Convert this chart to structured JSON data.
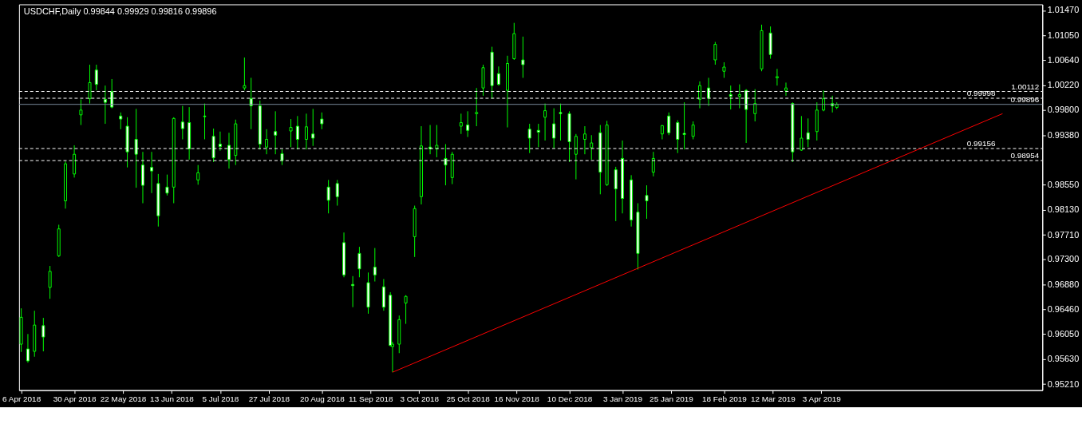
{
  "chart_data": {
    "type": "candlestick",
    "title": "USDCHF,Daily 0.99844 0.99929 0.99816 0.99896",
    "color": "#00ff00",
    "x": [
      "2018-04-06",
      "2018-04-09",
      "2018-04-12",
      "2018-04-16",
      "2018-04-19",
      "2018-04-23",
      "2018-04-26",
      "2018-04-30",
      "2018-05-03",
      "2018-05-07",
      "2018-05-10",
      "2018-05-14",
      "2018-05-17",
      "2018-05-21",
      "2018-05-24",
      "2018-05-28",
      "2018-05-31",
      "2018-06-04",
      "2018-06-07",
      "2018-06-11",
      "2018-06-14",
      "2018-06-18",
      "2018-06-21",
      "2018-06-25",
      "2018-06-28",
      "2018-07-02",
      "2018-07-05",
      "2018-07-09",
      "2018-07-12",
      "2018-07-16",
      "2018-07-19",
      "2018-07-23",
      "2018-07-26",
      "2018-07-30",
      "2018-08-02",
      "2018-08-06",
      "2018-08-09",
      "2018-08-13",
      "2018-08-16",
      "2018-08-20",
      "2018-08-23",
      "2018-08-27",
      "2018-08-30",
      "2018-09-03",
      "2018-09-06",
      "2018-09-10",
      "2018-09-13",
      "2018-09-17",
      "2018-09-20",
      "2018-09-21",
      "2018-09-24",
      "2018-09-27",
      "2018-10-01",
      "2018-10-04",
      "2018-10-08",
      "2018-10-11",
      "2018-10-15",
      "2018-10-18",
      "2018-10-22",
      "2018-10-25",
      "2018-10-29",
      "2018-11-01",
      "2018-11-05",
      "2018-11-08",
      "2018-11-12",
      "2018-11-15",
      "2018-11-19",
      "2018-11-22",
      "2018-11-26",
      "2018-11-29",
      "2018-12-03",
      "2018-12-06",
      "2018-12-10",
      "2018-12-13",
      "2018-12-17",
      "2018-12-20",
      "2018-12-24",
      "2018-12-27",
      "2018-12-31",
      "2019-01-03",
      "2019-01-07",
      "2019-01-10",
      "2019-01-14",
      "2019-01-17",
      "2019-01-21",
      "2019-01-24",
      "2019-01-28",
      "2019-01-31",
      "2019-02-04",
      "2019-02-07",
      "2019-02-11",
      "2019-02-14",
      "2019-02-18",
      "2019-02-21",
      "2019-02-25",
      "2019-02-28",
      "2019-03-04",
      "2019-03-07",
      "2019-03-11",
      "2019-03-14",
      "2019-03-18",
      "2019-03-21",
      "2019-03-25",
      "2019-03-28",
      "2019-04-01",
      "2019-04-04",
      "2019-04-08",
      "2019-04-10"
    ],
    "ohlc": [
      [
        0.9588,
        0.9648,
        0.9575,
        0.9633
      ],
      [
        0.958,
        0.9605,
        0.9557,
        0.956
      ],
      [
        0.9576,
        0.9644,
        0.9567,
        0.962
      ],
      [
        0.9619,
        0.9632,
        0.9576,
        0.96
      ],
      [
        0.9683,
        0.9719,
        0.9664,
        0.971
      ],
      [
        0.9736,
        0.9788,
        0.9734,
        0.9781
      ],
      [
        0.9828,
        0.9894,
        0.9815,
        0.989
      ],
      [
        0.9873,
        0.9921,
        0.9867,
        0.9906
      ],
      [
        0.9972,
        0.9998,
        0.9955,
        0.998
      ],
      [
        0.9999,
        1.0056,
        0.9991,
        1.0026
      ],
      [
        1.0047,
        1.0056,
        1.0013,
        1.0023
      ],
      [
        0.9998,
        1.0021,
        0.9957,
        0.9993
      ],
      [
        1.0011,
        1.0032,
        0.9983,
        0.9985
      ],
      [
        0.997,
        0.9976,
        0.9948,
        0.9965
      ],
      [
        0.9953,
        0.9968,
        0.9884,
        0.991
      ],
      [
        0.9931,
        0.9982,
        0.985,
        0.9906
      ],
      [
        0.9888,
        0.991,
        0.9824,
        0.9854
      ],
      [
        0.9884,
        0.991,
        0.9841,
        0.9878
      ],
      [
        0.9857,
        0.9873,
        0.9785,
        0.9803
      ],
      [
        0.9851,
        0.9872,
        0.9837,
        0.9841
      ],
      [
        0.9851,
        0.9968,
        0.9824,
        0.9966
      ],
      [
        0.996,
        0.9987,
        0.9931,
        0.9949
      ],
      [
        0.9959,
        0.9985,
        0.9897,
        0.9915
      ],
      [
        0.9863,
        0.9888,
        0.9855,
        0.9875
      ],
      [
        0.997,
        0.9991,
        0.9931,
        0.9969
      ],
      [
        0.9936,
        0.9949,
        0.9893,
        0.99
      ],
      [
        0.9923,
        0.9944,
        0.9912,
        0.9919
      ],
      [
        0.9921,
        0.9942,
        0.9882,
        0.9897
      ],
      [
        0.9904,
        0.9964,
        0.9888,
        0.9957
      ],
      [
        1.0017,
        1.0068,
        1.0013,
        1.0021
      ],
      [
        0.9999,
        1.0034,
        0.9948,
        0.9987
      ],
      [
        0.9987,
        0.9996,
        0.9914,
        0.9923
      ],
      [
        0.9918,
        0.9948,
        0.9906,
        0.9931
      ],
      [
        0.9944,
        0.9978,
        0.9906,
        0.9938
      ],
      [
        0.9907,
        0.9914,
        0.9888,
        0.9896
      ],
      [
        0.9945,
        0.9965,
        0.9918,
        0.9951
      ],
      [
        0.9953,
        0.997,
        0.9914,
        0.9931
      ],
      [
        0.9931,
        0.9974,
        0.9914,
        0.9952
      ],
      [
        0.994,
        0.9982,
        0.992,
        0.9933
      ],
      [
        0.9965,
        0.9976,
        0.9948,
        0.9957
      ],
      [
        0.9851,
        0.9863,
        0.9807,
        0.9829
      ],
      [
        0.9857,
        0.9863,
        0.982,
        0.9835
      ],
      [
        0.9758,
        0.9775,
        0.97,
        0.9704
      ],
      [
        0.9688,
        0.9702,
        0.965,
        0.9686
      ],
      [
        0.974,
        0.9751,
        0.97,
        0.9714
      ],
      [
        0.9691,
        0.9708,
        0.9639,
        0.965
      ],
      [
        0.9717,
        0.9749,
        0.9693,
        0.9704
      ],
      [
        0.9684,
        0.9697,
        0.9644,
        0.965
      ],
      [
        0.967,
        0.9675,
        0.9584,
        0.9586
      ],
      [
        0.9584,
        0.9592,
        0.9541,
        0.9588
      ],
      [
        0.9588,
        0.9636,
        0.9573,
        0.9629
      ],
      [
        0.9657,
        0.967,
        0.9622,
        0.9668
      ],
      [
        0.9768,
        0.982,
        0.9734,
        0.9815
      ],
      [
        0.9835,
        0.9953,
        0.9822,
        0.992
      ],
      [
        0.9918,
        0.9955,
        0.9906,
        0.9915
      ],
      [
        0.9915,
        0.9955,
        0.9901,
        0.9921
      ],
      [
        0.9899,
        0.9923,
        0.9854,
        0.9888
      ],
      [
        0.9867,
        0.991,
        0.9856,
        0.9906
      ],
      [
        0.9953,
        0.9974,
        0.994,
        0.9959
      ],
      [
        0.9955,
        0.9978,
        0.9935,
        0.9946
      ],
      [
        0.9974,
        1.0017,
        0.9953,
        0.9976
      ],
      [
        1.0017,
        1.0056,
        1.0004,
        1.0051
      ],
      [
        1.0077,
        1.0086,
        0.9999,
        1.0021
      ],
      [
        1.0041,
        1.0053,
        1.0021,
        1.0023
      ],
      [
        1.0013,
        1.0071,
        0.9951,
        1.0058
      ],
      [
        1.0066,
        1.0126,
        1.0064,
        1.0108
      ],
      [
        1.0064,
        1.0103,
        1.0034,
        1.0056
      ],
      [
        0.9948,
        0.9957,
        0.9908,
        0.9933
      ],
      [
        0.9946,
        0.9957,
        0.9918,
        0.9943
      ],
      [
        0.9968,
        0.9991,
        0.9929,
        0.9979
      ],
      [
        0.9957,
        0.9983,
        0.9916,
        0.9933
      ],
      [
        0.9976,
        0.9991,
        0.9929,
        0.9974
      ],
      [
        0.9974,
        0.9978,
        0.9893,
        0.9927
      ],
      [
        0.9906,
        0.994,
        0.9864,
        0.9936
      ],
      [
        0.9931,
        0.9953,
        0.9906,
        0.994
      ],
      [
        0.9917,
        0.9938,
        0.9897,
        0.9925
      ],
      [
        0.9942,
        0.9955,
        0.9839,
        0.9876
      ],
      [
        0.9855,
        0.9962,
        0.9853,
        0.9955
      ],
      [
        0.988,
        0.9885,
        0.9794,
        0.9848
      ],
      [
        0.9899,
        0.9929,
        0.9807,
        0.9832
      ],
      [
        0.9863,
        0.9871,
        0.9785,
        0.9796
      ],
      [
        0.9809,
        0.9824,
        0.9713,
        0.974
      ],
      [
        0.9837,
        0.9854,
        0.9798,
        0.9828
      ],
      [
        0.9876,
        0.991,
        0.9869,
        0.9899
      ],
      [
        0.994,
        0.9955,
        0.9931,
        0.9954
      ],
      [
        0.997,
        0.9976,
        0.9938,
        0.9942
      ],
      [
        0.9959,
        0.9963,
        0.9908,
        0.9931
      ],
      [
        0.9941,
        0.9993,
        0.9914,
        0.9939
      ],
      [
        0.9936,
        0.9961,
        0.9931,
        0.9955
      ],
      [
        0.9998,
        1.0028,
        0.9983,
        1.0021
      ],
      [
        1.0017,
        1.0034,
        0.9987,
        1.0
      ],
      [
        1.0064,
        1.0094,
        1.0056,
        1.009
      ],
      [
        1.0045,
        1.006,
        1.0034,
        1.0052
      ],
      [
        1.0006,
        1.0021,
        0.9981,
        1.0003
      ],
      [
        1.0003,
        1.0023,
        0.9983,
        1.0006
      ],
      [
        1.0013,
        1.0015,
        0.9925,
        0.9981
      ],
      [
        0.9974,
        1.0015,
        0.9961,
        0.9991
      ],
      [
        1.0049,
        1.0123,
        1.0045,
        1.0113
      ],
      [
        1.0109,
        1.012,
        1.0066,
        1.0073
      ],
      [
        1.0034,
        1.0049,
        1.0021,
        1.0036
      ],
      [
        1.0013,
        1.0026,
        1.0004,
        1.0017
      ],
      [
        0.9991,
        0.9993,
        0.9893,
        0.991
      ],
      [
        0.9913,
        0.997,
        0.9912,
        0.9933
      ],
      [
        0.9942,
        0.9966,
        0.9918,
        0.9931
      ],
      [
        0.9944,
        0.9993,
        0.9929,
        0.998
      ],
      [
        0.998,
        1.0013,
        0.9978,
        0.9999
      ],
      [
        0.9991,
        1.0004,
        0.9976,
        0.9987
      ],
      [
        0.99844,
        0.99929,
        0.99816,
        0.99896
      ]
    ],
    "series": [
      {
        "type": "line",
        "color": "#ff0000",
        "x": [
          "2018-09-21",
          "2019-06-24"
        ],
        "values": [
          0.9541,
          0.9974
        ]
      }
    ],
    "xlim": [
      "2018-04-05",
      "2019-07-12"
    ],
    "xticks": [
      {
        "value": "2018-04-06",
        "label": "6 Apr 2018"
      },
      {
        "value": "2018-04-30",
        "label": "30 Apr 2018"
      },
      {
        "value": "2018-05-22",
        "label": "22 May 2018"
      },
      {
        "value": "2018-06-13",
        "label": "13 Jun 2018"
      },
      {
        "value": "2018-07-05",
        "label": "5 Jul 2018"
      },
      {
        "value": "2018-07-27",
        "label": "27 Jul 2018"
      },
      {
        "value": "2018-08-20",
        "label": "20 Aug 2018"
      },
      {
        "value": "2018-09-11",
        "label": "11 Sep 2018"
      },
      {
        "value": "2018-10-03",
        "label": "3 Oct 2018"
      },
      {
        "value": "2018-10-25",
        "label": "25 Oct 2018"
      },
      {
        "value": "2018-11-16",
        "label": "16 Nov 2018"
      },
      {
        "value": "2018-12-10",
        "label": "10 Dec 2018"
      },
      {
        "value": "2019-01-03",
        "label": "3 Jan 2019"
      },
      {
        "value": "2019-01-25",
        "label": "25 Jan 2019"
      },
      {
        "value": "2019-02-18",
        "label": "18 Feb 2019"
      },
      {
        "value": "2019-03-12",
        "label": "12 Mar 2019"
      },
      {
        "value": "2019-04-03",
        "label": "3 Apr 2019"
      }
    ],
    "ylim": [
      0.9511,
      1.0157
    ],
    "yticks": [
      {
        "value": 1.0147,
        "label": "1.01470"
      },
      {
        "value": 1.0105,
        "label": "1.01050"
      },
      {
        "value": 1.0064,
        "label": "1.00640"
      },
      {
        "value": 1.0022,
        "label": "1.00220"
      },
      {
        "value": 0.998,
        "label": "0.99800"
      },
      {
        "value": 0.9938,
        "label": "0.99380"
      },
      {
        "value": 0.9855,
        "label": "0.98550"
      },
      {
        "value": 0.9813,
        "label": "0.98130"
      },
      {
        "value": 0.9771,
        "label": "0.97710"
      },
      {
        "value": 0.973,
        "label": "0.97300"
      },
      {
        "value": 0.9688,
        "label": "0.96880"
      },
      {
        "value": 0.9646,
        "label": "0.96460"
      },
      {
        "value": 0.9605,
        "label": "0.96050"
      },
      {
        "value": 0.9563,
        "label": "0.95630"
      },
      {
        "value": 0.9521,
        "label": "0.95210"
      }
    ],
    "ref_lines": [
      {
        "axis": "y",
        "value": 1.00112,
        "label": "1.00112",
        "color": "#ffffff",
        "line_style": "dashed"
      },
      {
        "axis": "y",
        "value": 0.99998,
        "label": "0.99998",
        "color": "#ffffff",
        "line_style": "dashed"
      },
      {
        "axis": "y",
        "value": 0.99896,
        "label": "0.99896",
        "color": "#778899",
        "line_style": "solid"
      },
      {
        "axis": "y",
        "value": 0.99156,
        "label": "0.99156",
        "color": "#ffffff",
        "line_style": "dashed"
      },
      {
        "axis": "y",
        "value": 0.98954,
        "label": "0.98954",
        "color": "#ffffff",
        "line_style": "dashed"
      }
    ],
    "grid": false
  }
}
